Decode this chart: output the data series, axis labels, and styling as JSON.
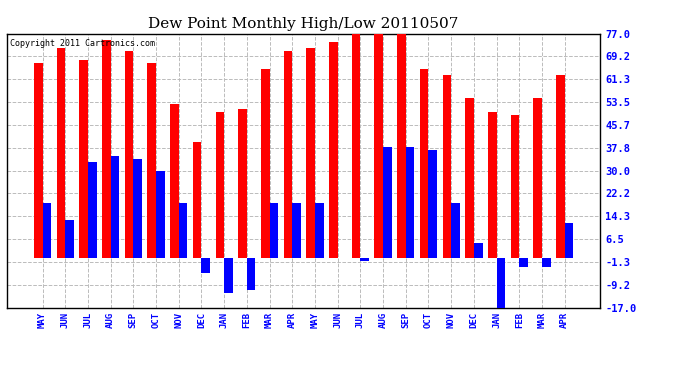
{
  "title": "Dew Point Monthly High/Low 20110507",
  "copyright": "Copyright 2011 Cartronics.com",
  "months": [
    "MAY",
    "JUN",
    "JUL",
    "AUG",
    "SEP",
    "OCT",
    "NOV",
    "DEC",
    "JAN",
    "FEB",
    "MAR",
    "APR",
    "MAY",
    "JUN",
    "JUL",
    "AUG",
    "SEP",
    "OCT",
    "NOV",
    "DEC",
    "JAN",
    "FEB",
    "MAR",
    "APR"
  ],
  "highs": [
    67,
    72,
    68,
    75,
    71,
    67,
    53,
    40,
    50,
    51,
    65,
    71,
    72,
    74,
    77,
    78,
    77,
    65,
    63,
    55,
    50,
    49,
    55,
    63
  ],
  "lows": [
    19,
    13,
    33,
    35,
    34,
    30,
    19,
    -5,
    -12,
    -11,
    19,
    19,
    19,
    0,
    -1,
    38,
    38,
    37,
    19,
    5,
    -18,
    -3,
    -3,
    12
  ],
  "bar_color_high": "#ff0000",
  "bar_color_low": "#0000ff",
  "yticks": [
    77.0,
    69.2,
    61.3,
    53.5,
    45.7,
    37.8,
    30.0,
    22.2,
    14.3,
    6.5,
    -1.3,
    -9.2,
    -17.0
  ],
  "ylim": [
    -17.0,
    77.0
  ],
  "background_color": "#ffffff",
  "grid_color": "#bbbbbb",
  "title_fontsize": 11,
  "bar_width": 0.38,
  "xlabel_fontsize": 6.5,
  "ylabel_fontsize": 7.5,
  "tick_color": "#000000",
  "border_color": "#000000"
}
